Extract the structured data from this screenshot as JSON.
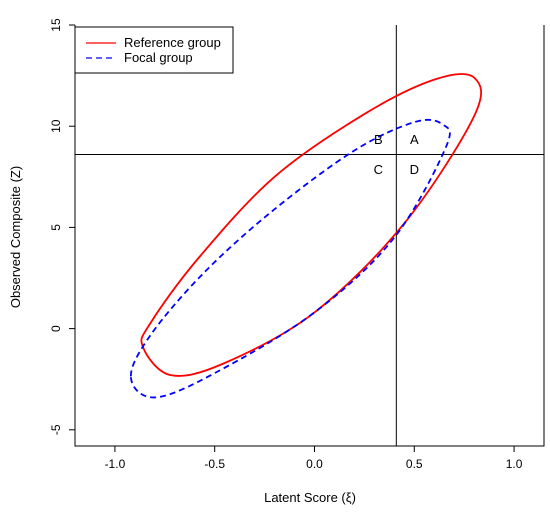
{
  "chart_data": {
    "type": "line",
    "xlabel": "Latent Score (ξ)",
    "ylabel": "Observed Composite (Z)",
    "xlim": [
      -1.2,
      1.15
    ],
    "ylim": [
      -5.8,
      15
    ],
    "x_ticks": [
      -1.0,
      -0.5,
      0.0,
      0.5,
      1.0
    ],
    "x_tick_labels": [
      "-1.0",
      "-0.5",
      "0.0",
      "0.5",
      "1.0"
    ],
    "y_ticks": [
      -5,
      0,
      5,
      10,
      15
    ],
    "y_tick_labels": [
      "-5",
      "0",
      "5",
      "10",
      "15"
    ],
    "grid": false,
    "legend_position": "top-left",
    "reference_lines": {
      "vertical_x": 0.41,
      "horizontal_y": 8.6
    },
    "quadrant_labels": [
      {
        "text": "B",
        "x": 0.32,
        "y": 9.3
      },
      {
        "text": "A",
        "x": 0.5,
        "y": 9.3
      },
      {
        "text": "C",
        "x": 0.32,
        "y": 7.8
      },
      {
        "text": "D",
        "x": 0.5,
        "y": 7.8
      }
    ],
    "series": [
      {
        "name": "Reference group",
        "color": "#ff0000",
        "dash": "solid",
        "points": [
          [
            -0.86,
            -0.9
          ],
          [
            -0.72,
            -2.3
          ],
          [
            -0.45,
            -1.7
          ],
          [
            0.0,
            0.8
          ],
          [
            0.45,
            5.2
          ],
          [
            0.8,
            10.5
          ],
          [
            0.8,
            12.4
          ],
          [
            0.6,
            12.3
          ],
          [
            0.25,
            10.6
          ],
          [
            -0.2,
            7.5
          ],
          [
            -0.58,
            3.5
          ],
          [
            -0.82,
            0.3
          ],
          [
            -0.86,
            -0.9
          ]
        ]
      },
      {
        "name": "Focal group",
        "color": "#0000ff",
        "dash": "dashed",
        "points": [
          [
            -0.92,
            -2.4
          ],
          [
            -0.8,
            -3.4
          ],
          [
            -0.5,
            -2.2
          ],
          [
            0.0,
            0.8
          ],
          [
            0.4,
            4.5
          ],
          [
            0.66,
            9.0
          ],
          [
            0.64,
            10.1
          ],
          [
            0.5,
            10.2
          ],
          [
            0.2,
            8.8
          ],
          [
            -0.2,
            5.9
          ],
          [
            -0.55,
            2.8
          ],
          [
            -0.82,
            -0.3
          ],
          [
            -0.92,
            -2.4
          ]
        ]
      }
    ]
  }
}
